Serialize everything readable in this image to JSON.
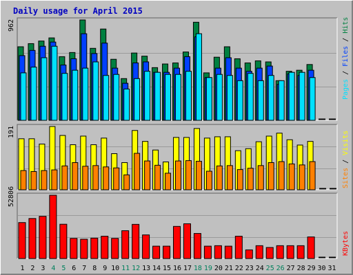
{
  "title": "Daily usage for April 2015",
  "colors": {
    "background": "#C0C0C0",
    "border_dark": "#808080",
    "border_light": "#FFFFFF",
    "title": "#0000C0",
    "hits": "#008040",
    "files": "#0040FF",
    "pages": "#00E0FF",
    "visits": "#FFFF00",
    "sites": "#FF8000",
    "kbytes": "#FF0000",
    "weekend_label": "#00805C",
    "weekday_label": "#000000"
  },
  "chart_data": [
    {
      "type": "bar",
      "name": "hits-files-pages",
      "axis_max_label": "962",
      "ylim": [
        0,
        962
      ],
      "legend": {
        "pages": "Pages",
        "files": "Files",
        "hits": "Hits",
        "sep": " / "
      },
      "categories": [
        "1",
        "2",
        "3",
        "4",
        "5",
        "6",
        "7",
        "8",
        "9",
        "10",
        "11",
        "12",
        "13",
        "14",
        "15",
        "16",
        "17",
        "18",
        "19",
        "20",
        "21",
        "22",
        "23",
        "24",
        "25",
        "26",
        "27",
        "28",
        "29",
        "30",
        "31"
      ],
      "series": [
        {
          "name": "Hits",
          "values": [
            705,
            735,
            760,
            790,
            610,
            650,
            962,
            690,
            875,
            585,
            400,
            645,
            615,
            505,
            540,
            550,
            655,
            940,
            455,
            605,
            705,
            590,
            550,
            570,
            560,
            380,
            470,
            480,
            535,
            0,
            0
          ]
        },
        {
          "name": "Files",
          "values": [
            620,
            670,
            710,
            750,
            530,
            590,
            830,
            640,
            740,
            500,
            355,
            550,
            560,
            460,
            460,
            500,
            610,
            800,
            410,
            500,
            600,
            500,
            470,
            500,
            520,
            345,
            445,
            430,
            480,
            0,
            0
          ]
        },
        {
          "name": "Pages",
          "values": [
            455,
            510,
            600,
            710,
            450,
            480,
            500,
            560,
            430,
            440,
            300,
            400,
            470,
            460,
            440,
            440,
            470,
            830,
            410,
            440,
            430,
            380,
            450,
            380,
            430,
            380,
            460,
            460,
            410,
            0,
            0
          ]
        }
      ]
    },
    {
      "type": "bar",
      "name": "visits-sites",
      "axis_max_label": "191",
      "ylim": [
        0,
        191
      ],
      "legend": {
        "sites": "Sites",
        "visits": "Visits",
        "sep": " / "
      },
      "categories": [
        "1",
        "2",
        "3",
        "4",
        "5",
        "6",
        "7",
        "8",
        "9",
        "10",
        "11",
        "12",
        "13",
        "14",
        "15",
        "16",
        "17",
        "18",
        "19",
        "20",
        "21",
        "22",
        "23",
        "24",
        "25",
        "26",
        "27",
        "28",
        "29",
        "30",
        "31"
      ],
      "series": [
        {
          "name": "Visits",
          "values": [
            154,
            154,
            138,
            191,
            164,
            136,
            162,
            136,
            156,
            109,
            82,
            179,
            146,
            120,
            84,
            158,
            158,
            185,
            156,
            160,
            160,
            118,
            124,
            145,
            162,
            171,
            151,
            135,
            146,
            0,
            0
          ]
        },
        {
          "name": "Sites",
          "values": [
            58,
            55,
            58,
            60,
            72,
            82,
            71,
            73,
            69,
            66,
            45,
            110,
            87,
            74,
            50,
            87,
            88,
            86,
            56,
            72,
            73,
            61,
            65,
            73,
            82,
            85,
            78,
            75,
            85,
            0,
            0
          ]
        }
      ]
    },
    {
      "type": "bar",
      "name": "kbytes",
      "axis_max_label": "52806",
      "ylim": [
        0,
        52806
      ],
      "legend": {
        "kbytes": "KBytes"
      },
      "categories": [
        "1",
        "2",
        "3",
        "4",
        "5",
        "6",
        "7",
        "8",
        "9",
        "10",
        "11",
        "12",
        "13",
        "14",
        "15",
        "16",
        "17",
        "18",
        "19",
        "20",
        "21",
        "22",
        "23",
        "24",
        "25",
        "26",
        "27",
        "28",
        "29",
        "30",
        "31"
      ],
      "series": [
        {
          "name": "KBytes",
          "values": [
            30000,
            33400,
            35200,
            52806,
            28600,
            16800,
            16100,
            17000,
            18600,
            16800,
            23200,
            28500,
            19700,
            10300,
            10300,
            26800,
            29000,
            20900,
            10300,
            10700,
            10300,
            18600,
            7200,
            10700,
            9200,
            10700,
            10700,
            10700,
            18000,
            0,
            0
          ]
        }
      ]
    }
  ],
  "x_labels": [
    "1",
    "2",
    "3",
    "4",
    "5",
    "6",
    "7",
    "8",
    "9",
    "10",
    "11",
    "12",
    "13",
    "14",
    "15",
    "16",
    "17",
    "18",
    "19",
    "20",
    "21",
    "22",
    "23",
    "24",
    "25",
    "26",
    "27",
    "28",
    "29",
    "30",
    "31"
  ],
  "weekend_days": [
    "4",
    "5",
    "11",
    "12",
    "18",
    "19",
    "25",
    "26"
  ]
}
